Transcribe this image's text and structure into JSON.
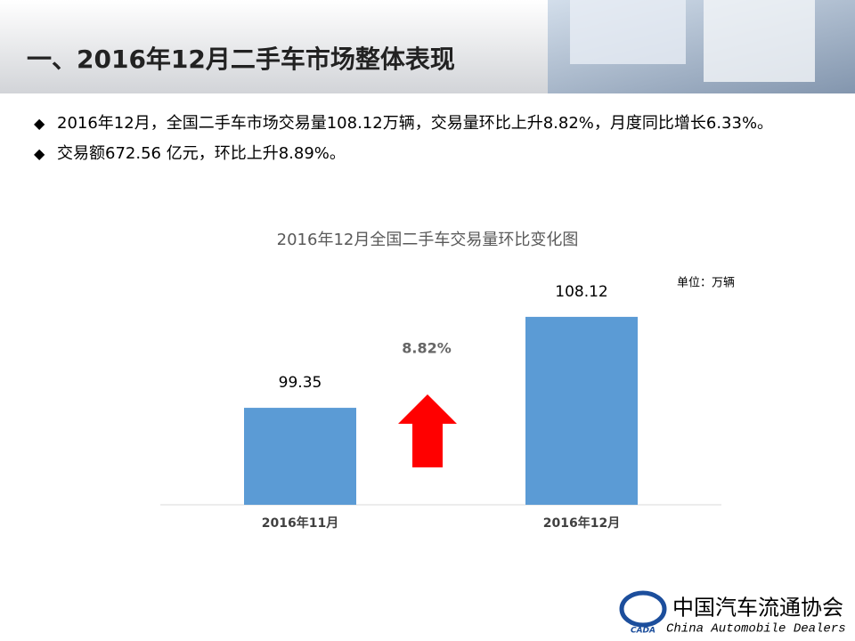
{
  "header": {
    "title": "一、2016年12月二手车市场整体表现"
  },
  "bullets": [
    "2016年12月，全国二手车市场交易量108.12万辆，交易量环比上升8.82%，月度同比增长6.33%。",
    "交易额672.56 亿元，环比上升8.89%。"
  ],
  "chart_data": {
    "type": "bar",
    "title": "2016年12月全国二手车交易量环比变化图",
    "unit_label": "单位：万辆",
    "categories": [
      "2016年11月",
      "2016年12月"
    ],
    "values": [
      99.35,
      108.12
    ],
    "color": "#5b9bd5",
    "ylim": [
      90,
      110
    ],
    "annotation": "8.82%",
    "arrow_color": "#ff0000"
  },
  "footer": {
    "logo": "CADA",
    "name_cn": "中国汽车流通协会",
    "name_en": "China  Automobile Dealers"
  }
}
